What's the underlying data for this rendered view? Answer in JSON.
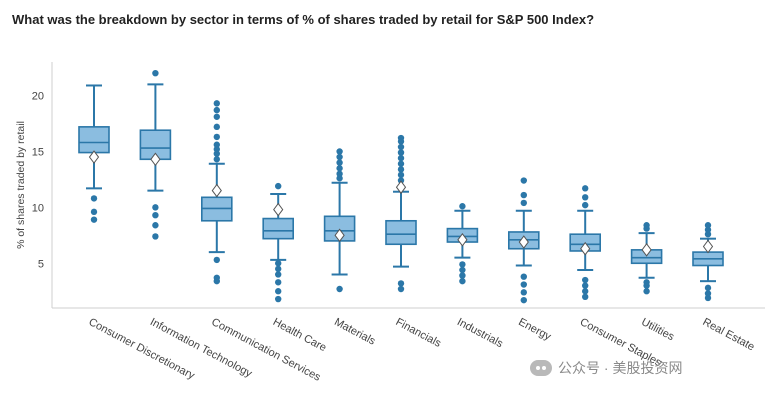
{
  "chart_data": {
    "type": "box",
    "title": "What was the breakdown by sector in terms of % of shares traded by retail for S&P 500 Index?",
    "ylabel": "% of shares traded by retail",
    "xlabel": "",
    "ylim": [
      1,
      23
    ],
    "yticks": [
      5,
      10,
      15,
      20
    ],
    "grid": false,
    "box_color": "#8bbde0",
    "line_color": "#2b77a8",
    "categories": [
      "Consumer Discretionary",
      "Information Technology",
      "Communication Services",
      "Health Care",
      "Materials",
      "Financials",
      "Industrials",
      "Energy",
      "Consumer Staples",
      "Utilities",
      "Real Estate"
    ],
    "boxes": [
      {
        "q1": 14.9,
        "median": 15.8,
        "q3": 17.2,
        "whisker_low": 11.7,
        "whisker_high": 20.9,
        "mean": 14.5,
        "outliers": [
          8.9,
          9.6,
          10.8
        ]
      },
      {
        "q1": 14.3,
        "median": 15.3,
        "q3": 16.9,
        "whisker_low": 11.5,
        "whisker_high": 21.0,
        "mean": 14.3,
        "outliers": [
          7.4,
          8.4,
          9.3,
          10.0,
          22.0
        ]
      },
      {
        "q1": 8.8,
        "median": 9.9,
        "q3": 10.9,
        "whisker_low": 6.0,
        "whisker_high": 13.9,
        "mean": 11.5,
        "outliers": [
          3.4,
          3.7,
          5.3,
          14.3,
          14.8,
          15.2,
          15.6,
          16.3,
          17.2,
          18.1,
          18.7,
          19.3
        ]
      },
      {
        "q1": 7.2,
        "median": 7.9,
        "q3": 9.0,
        "whisker_low": 5.3,
        "whisker_high": 11.2,
        "mean": 9.8,
        "outliers": [
          1.8,
          2.5,
          3.3,
          4.0,
          4.5,
          5.0,
          11.9
        ]
      },
      {
        "q1": 7.0,
        "median": 7.9,
        "q3": 9.2,
        "whisker_low": 4.0,
        "whisker_high": 12.2,
        "mean": 7.5,
        "outliers": [
          2.7,
          12.6,
          13.0,
          13.5,
          14.0,
          14.5,
          15.0
        ]
      },
      {
        "q1": 6.7,
        "median": 7.6,
        "q3": 8.8,
        "whisker_low": 4.7,
        "whisker_high": 11.4,
        "mean": 11.8,
        "outliers": [
          2.7,
          3.2,
          12.4,
          12.9,
          13.4,
          13.9,
          14.4,
          14.9,
          15.4,
          15.9,
          16.2
        ]
      },
      {
        "q1": 6.9,
        "median": 7.4,
        "q3": 8.1,
        "whisker_low": 5.5,
        "whisker_high": 9.7,
        "mean": 7.1,
        "outliers": [
          3.4,
          3.9,
          4.4,
          4.9,
          10.1
        ]
      },
      {
        "q1": 6.3,
        "median": 7.1,
        "q3": 7.8,
        "whisker_low": 4.8,
        "whisker_high": 9.7,
        "mean": 6.9,
        "outliers": [
          1.7,
          2.4,
          3.1,
          3.8,
          10.4,
          11.1,
          12.4
        ]
      },
      {
        "q1": 6.1,
        "median": 6.7,
        "q3": 7.6,
        "whisker_low": 4.4,
        "whisker_high": 9.7,
        "mean": 6.3,
        "outliers": [
          2.0,
          2.5,
          3.0,
          3.5,
          10.2,
          10.9,
          11.7
        ]
      },
      {
        "q1": 5.0,
        "median": 5.5,
        "q3": 6.2,
        "whisker_low": 3.7,
        "whisker_high": 7.7,
        "mean": 6.2,
        "outliers": [
          2.5,
          3.0,
          3.3,
          8.1,
          8.4
        ]
      },
      {
        "q1": 4.8,
        "median": 5.4,
        "q3": 6.0,
        "whisker_low": 3.4,
        "whisker_high": 7.2,
        "mean": 6.5,
        "outliers": [
          1.9,
          2.3,
          2.8,
          7.6,
          8.0,
          8.4
        ]
      }
    ]
  },
  "watermark": {
    "text": "公众号 · 美股投资网",
    "icon": "wechat-icon"
  }
}
